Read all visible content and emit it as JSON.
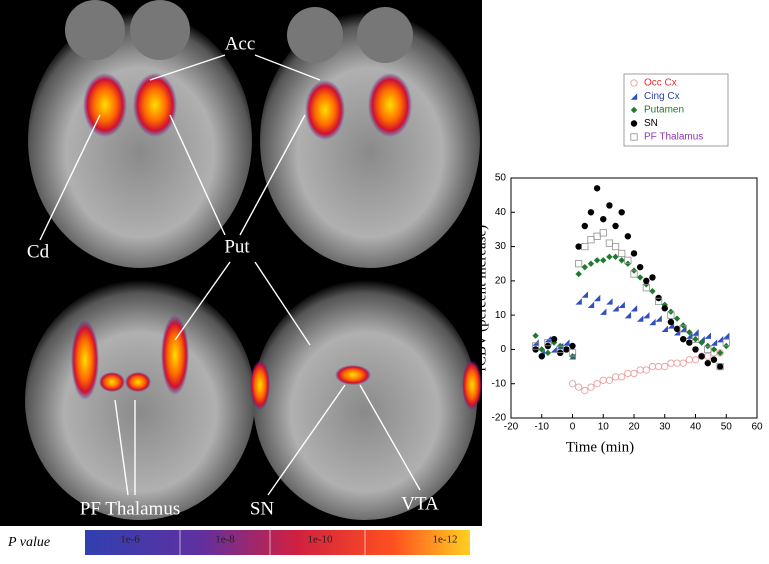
{
  "figure": {
    "image_labels": [
      "Acc",
      "Cd",
      "Put",
      "PF Thalamus",
      "SN",
      "VTA"
    ],
    "colorbar": {
      "title": "P value",
      "labels": [
        "1e-6",
        "1e-8",
        "1e-10",
        "1e-12"
      ]
    }
  },
  "chart_data": {
    "type": "scatter",
    "x_label": "Time (min)",
    "y_label": "rCBV (percent increase)",
    "xlim": [
      -20,
      60
    ],
    "xticks": [
      -20,
      -10,
      0,
      10,
      20,
      30,
      40,
      50,
      60
    ],
    "ylim": [
      -20,
      50
    ],
    "yticks": [
      -20,
      -10,
      0,
      10,
      20,
      30,
      40,
      50
    ],
    "grid": false,
    "legend": "upper right",
    "series": [
      {
        "name": "Occ Cx",
        "color": "#e03030",
        "marker_color": "#e8a0a0",
        "marker": "open-circle",
        "x": [
          0,
          2,
          4,
          6,
          8,
          10,
          12,
          14,
          16,
          18,
          20,
          22,
          24,
          26,
          28,
          30,
          32,
          34,
          36,
          38,
          40,
          42,
          44,
          46,
          48
        ],
        "values": [
          -10,
          -11,
          -12,
          -11,
          -10,
          -9,
          -9,
          -8,
          -8,
          -7,
          -7,
          -6,
          -6,
          -5,
          -5,
          -5,
          -4,
          -4,
          -4,
          -3,
          -3,
          -2,
          -2,
          -1,
          -1
        ]
      },
      {
        "name": "Cing Cx",
        "color": "#2a3fb0",
        "marker_color": "#3050c0",
        "marker": "triangle",
        "x": [
          -12,
          -10,
          -8,
          -6,
          -4,
          -2,
          0,
          2,
          4,
          6,
          8,
          10,
          12,
          14,
          16,
          18,
          20,
          22,
          24,
          26,
          28,
          30,
          32,
          34,
          36,
          38,
          40,
          42,
          44,
          46,
          48,
          50
        ],
        "values": [
          2,
          -1,
          3,
          0,
          1,
          2,
          -2,
          14,
          16,
          13,
          15,
          11,
          14,
          12,
          13,
          10,
          12,
          9,
          10,
          8,
          9,
          6,
          7,
          5,
          6,
          4,
          5,
          3,
          4,
          2,
          3,
          4
        ]
      },
      {
        "name": "Putamen",
        "color": "#1f7a2e",
        "marker_color": "#1f7a2e",
        "marker": "diamond",
        "x": [
          -12,
          -10,
          -8,
          -6,
          -4,
          -2,
          0,
          2,
          4,
          6,
          8,
          10,
          12,
          14,
          16,
          18,
          20,
          22,
          24,
          26,
          28,
          30,
          32,
          34,
          36,
          38,
          40,
          42,
          44,
          46,
          48,
          50
        ],
        "values": [
          4,
          0,
          -1,
          2,
          1,
          0,
          -2,
          22,
          24,
          25,
          26,
          26,
          27,
          27,
          26,
          25,
          23,
          21,
          19,
          17,
          15,
          13,
          11,
          9,
          7,
          5,
          3,
          2,
          1,
          0,
          -1,
          1
        ]
      },
      {
        "name": "SN",
        "color": "#000000",
        "marker_color": "#000000",
        "marker": "circle",
        "x": [
          -12,
          -10,
          -8,
          -6,
          -4,
          -2,
          0,
          2,
          4,
          6,
          8,
          10,
          12,
          14,
          16,
          18,
          20,
          22,
          24,
          26,
          28,
          30,
          32,
          34,
          36,
          38,
          40,
          42,
          44,
          46,
          48
        ],
        "values": [
          0,
          -2,
          1,
          3,
          -1,
          0,
          1,
          30,
          36,
          40,
          47,
          38,
          42,
          36,
          40,
          33,
          28,
          24,
          20,
          21,
          15,
          12,
          8,
          6,
          3,
          2,
          0,
          -2,
          -4,
          -3,
          -5
        ]
      },
      {
        "name": "PF Thalamus",
        "color": "#8a35b0",
        "marker_color": "#909090",
        "marker": "open-square",
        "x": [
          -12,
          -8,
          -4,
          0,
          2,
          4,
          6,
          8,
          10,
          12,
          14,
          16,
          18,
          20,
          24,
          28,
          32,
          36,
          40,
          44,
          48,
          50
        ],
        "values": [
          1,
          2,
          0,
          -1,
          25,
          30,
          32,
          33,
          34,
          31,
          30,
          28,
          26,
          22,
          18,
          14,
          10,
          6,
          3,
          0,
          -5,
          2
        ]
      }
    ]
  }
}
